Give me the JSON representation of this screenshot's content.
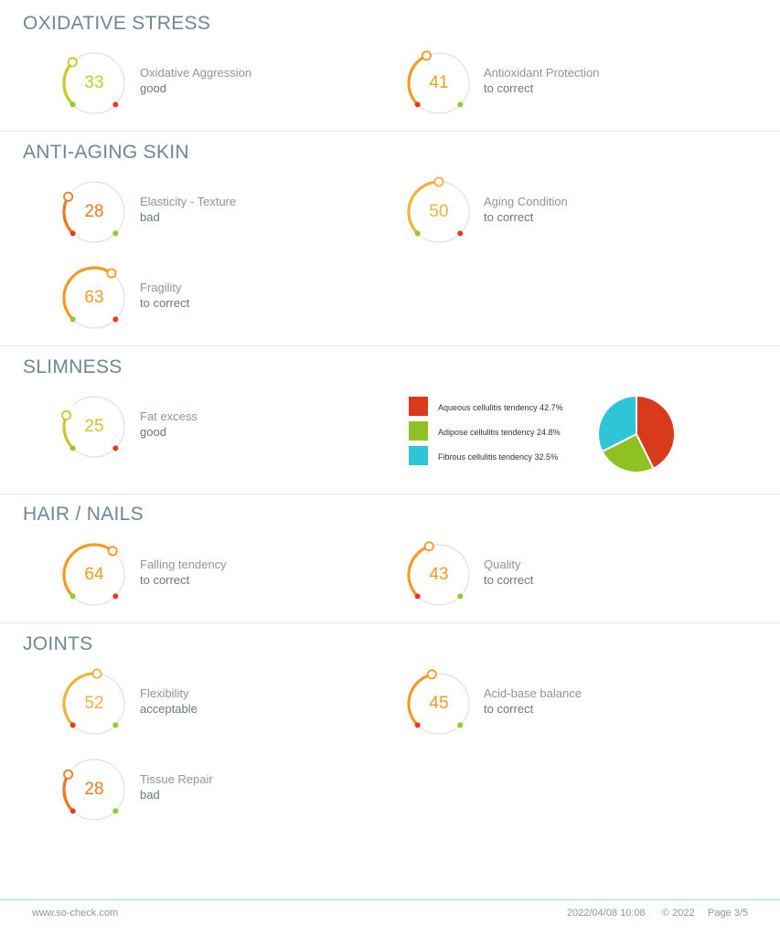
{
  "colors": {
    "good": "#c8c928",
    "bad": "#ef7a25",
    "correct": "#f59a24",
    "acceptable": "#f2b13a",
    "red_dot": "#e73823",
    "green_dot": "#8ccc2e",
    "track": "#dde1e4"
  },
  "sections": [
    {
      "title": "OXIDATIVE STRESS"
    },
    {
      "title": "ANTI-AGING SKIN"
    },
    {
      "title": "SLIMNESS"
    },
    {
      "title": "HAIR / NAILS"
    },
    {
      "title": "JOINTS"
    }
  ],
  "metrics": [
    {
      "label": "Oxidative Aggression",
      "status": "good",
      "value": "33",
      "level": 33,
      "color": "#c8c928",
      "dot_left": "green",
      "dot_right": "red"
    },
    {
      "label": "Antioxidant Protection",
      "status": "to correct",
      "value": "41",
      "level": 41,
      "color": "#f59a24",
      "dot_left": "red",
      "dot_right": "green"
    },
    {
      "label": "Elasticity - Texture",
      "status": "bad",
      "value": "28",
      "level": 28,
      "color": "#ef7a25",
      "dot_left": "red",
      "dot_right": "green"
    },
    {
      "label": "Aging Condition",
      "status": "to correct",
      "value": "50",
      "level": 50,
      "color": "#f2b13a",
      "dot_left": "green",
      "dot_right": "red"
    },
    {
      "label": "Fragility",
      "status": "to correct",
      "value": "63",
      "level": 63,
      "color": "#f59a24",
      "dot_left": "green",
      "dot_right": "red"
    },
    {
      "label": "Fat excess",
      "status": "good",
      "value": "25",
      "level": 25,
      "color": "#c8c928",
      "dot_left": "green",
      "dot_right": "red"
    },
    {
      "label": "Falling tendency",
      "status": "to correct",
      "value": "64",
      "level": 64,
      "color": "#f59a24",
      "dot_left": "green",
      "dot_right": "red"
    },
    {
      "label": "Quality",
      "status": "to correct",
      "value": "43",
      "level": 43,
      "color": "#f59a24",
      "dot_left": "red",
      "dot_right": "green"
    },
    {
      "label": "Flexibility",
      "status": "acceptable",
      "value": "52",
      "level": 52,
      "color": "#f2b13a",
      "dot_left": "red",
      "dot_right": "green"
    },
    {
      "label": "Acid-base balance",
      "status": "to correct",
      "value": "45",
      "level": 45,
      "color": "#f59a24",
      "dot_left": "red",
      "dot_right": "green"
    },
    {
      "label": "Tissue Repair",
      "status": "bad",
      "value": "28",
      "level": 28,
      "color": "#ef7a25",
      "dot_left": "red",
      "dot_right": "green"
    }
  ],
  "chart_data": {
    "type": "pie",
    "slices": [
      {
        "label": "Aqueous cellulitis tendency 42.7%",
        "value": 42.7,
        "color": "#d93a1c"
      },
      {
        "label": "Adipose cellulitis tendency 24.8%",
        "value": 24.8,
        "color": "#8fc124"
      },
      {
        "label": "Fibrous cellulitis tendency 32.5%",
        "value": 32.5,
        "color": "#2fc5d8"
      }
    ]
  },
  "footer": {
    "website": "www.so-check.com",
    "datetime": "2022/04/08 10:08",
    "copyright": "© 2022",
    "page": "Page 3/5"
  }
}
